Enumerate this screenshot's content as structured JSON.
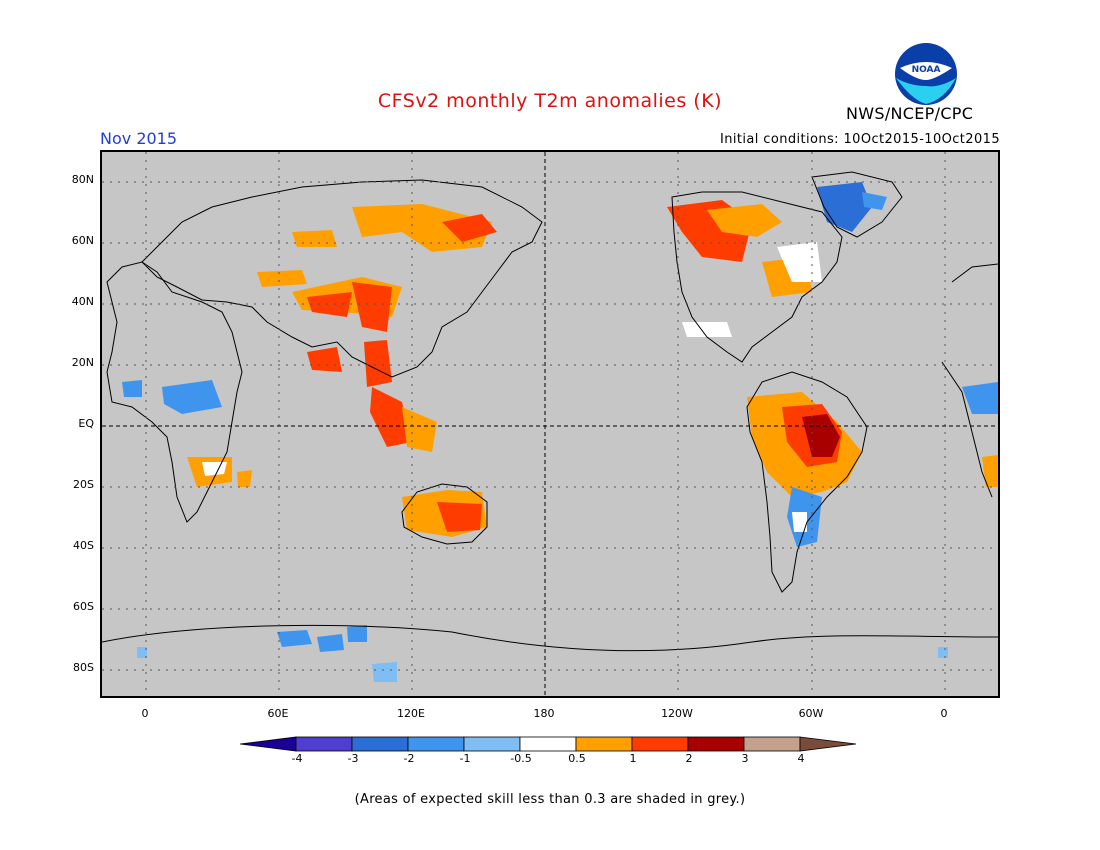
{
  "header": {
    "title": "CFSv2 monthly T2m anomalies (K)",
    "agency": "NWS/NCEP/CPC",
    "month": "Nov 2015",
    "initial_conditions": "Initial conditions: 10Oct2015-10Oct2015",
    "logo_text": "NOAA"
  },
  "axes": {
    "lat_labels": [
      "80N",
      "60N",
      "40N",
      "20N",
      "EQ",
      "20S",
      "40S",
      "60S",
      "80S"
    ],
    "lon_labels": [
      "0",
      "60E",
      "120E",
      "180",
      "120W",
      "60W",
      "0"
    ]
  },
  "colorbar": {
    "tick_labels": [
      "-4",
      "-3",
      "-2",
      "-1",
      "-0.5",
      "0.5",
      "1",
      "2",
      "3",
      "4"
    ],
    "colors": [
      "#1a0096",
      "#4f3ecf",
      "#2b6fd6",
      "#3f95ee",
      "#7fbdf2",
      "#ffffff",
      "#ff9f00",
      "#ff3c00",
      "#a80000",
      "#c4a08e",
      "#7a4a3a"
    ]
  },
  "footnote": "(Areas of expected skill less than 0.3 are shaded in grey.)",
  "colors": {
    "grey_mask": "#c6c6c6",
    "title": "#e01010",
    "month": "#1f3fd8"
  }
}
